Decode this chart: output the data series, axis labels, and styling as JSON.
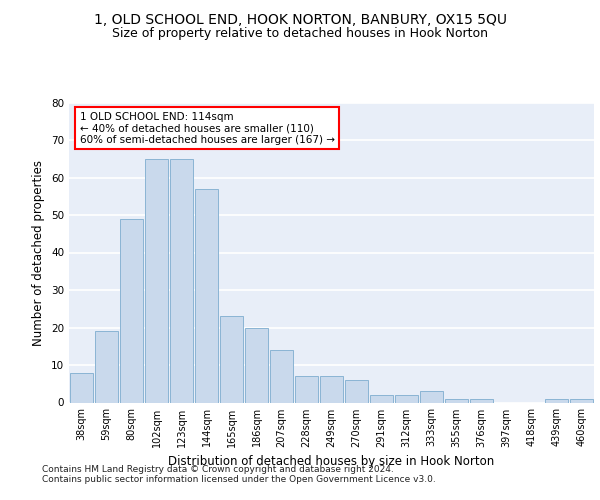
{
  "title": "1, OLD SCHOOL END, HOOK NORTON, BANBURY, OX15 5QU",
  "subtitle": "Size of property relative to detached houses in Hook Norton",
  "xlabel": "Distribution of detached houses by size in Hook Norton",
  "ylabel": "Number of detached properties",
  "categories": [
    "38sqm",
    "59sqm",
    "80sqm",
    "102sqm",
    "123sqm",
    "144sqm",
    "165sqm",
    "186sqm",
    "207sqm",
    "228sqm",
    "249sqm",
    "270sqm",
    "291sqm",
    "312sqm",
    "333sqm",
    "355sqm",
    "376sqm",
    "397sqm",
    "418sqm",
    "439sqm",
    "460sqm"
  ],
  "values": [
    8,
    19,
    49,
    65,
    65,
    57,
    23,
    20,
    14,
    7,
    7,
    6,
    2,
    2,
    3,
    1,
    1,
    0,
    0,
    1,
    1
  ],
  "bar_color": "#c9d9ec",
  "bar_edge_color": "#8ab4d4",
  "bg_color": "#e8eef8",
  "grid_color": "#ffffff",
  "annotation_line1": "1 OLD SCHOOL END: 114sqm",
  "annotation_line2": "← 40% of detached houses are smaller (110)",
  "annotation_line3": "60% of semi-detached houses are larger (167) →",
  "annotation_box_color": "white",
  "annotation_box_edge": "red",
  "ylim": [
    0,
    80
  ],
  "yticks": [
    0,
    10,
    20,
    30,
    40,
    50,
    60,
    70,
    80
  ],
  "footer": "Contains HM Land Registry data © Crown copyright and database right 2024.\nContains public sector information licensed under the Open Government Licence v3.0.",
  "title_fontsize": 10,
  "subtitle_fontsize": 9,
  "xlabel_fontsize": 8.5,
  "ylabel_fontsize": 8.5,
  "tick_fontsize": 7,
  "annotation_fontsize": 7.5,
  "footer_fontsize": 6.5
}
